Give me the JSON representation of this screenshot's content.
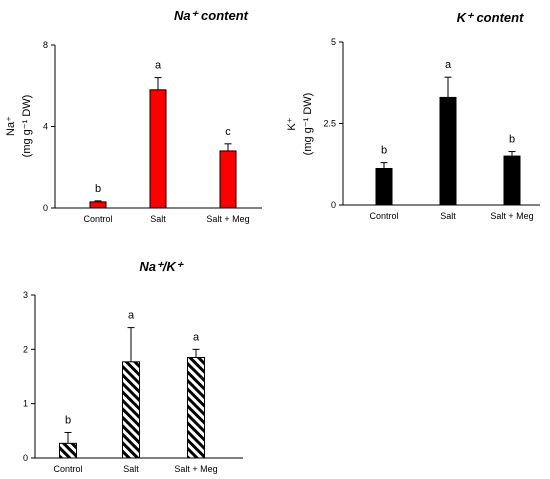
{
  "chart_data": [
    {
      "type": "bar",
      "title": "Na⁺ content",
      "ylabel_line1": "Na⁺",
      "ylabel_line2": "(mg g⁻¹ DW)",
      "categories": [
        "Control",
        "Salt",
        "Salt + Meg"
      ],
      "values": [
        0.3,
        5.8,
        2.8
      ],
      "errors": [
        0.05,
        0.6,
        0.35
      ],
      "significance": [
        "b",
        "a",
        "c"
      ],
      "yticks": [
        "0",
        "4",
        "8"
      ],
      "ylim": [
        0,
        8
      ],
      "bar_color": "#ff0000",
      "pattern": "solid",
      "grid": false
    },
    {
      "type": "bar",
      "title": "K⁺ content",
      "ylabel_line1": "K⁺",
      "ylabel_line2": "(mg g⁻¹ DW)",
      "categories": [
        "Control",
        "Salt",
        "Salt + Meg"
      ],
      "values": [
        1.12,
        3.3,
        1.5
      ],
      "errors": [
        0.18,
        0.62,
        0.14
      ],
      "significance": [
        "b",
        "a",
        "b"
      ],
      "yticks": [
        "0",
        "2.5",
        "5"
      ],
      "ylim": [
        0,
        5
      ],
      "bar_color": "#000000",
      "pattern": "solid",
      "grid": false
    },
    {
      "type": "bar",
      "title": "Na⁺/K⁺",
      "ylabel_line1": "",
      "ylabel_line2": "",
      "categories": [
        "Control",
        "Salt",
        "Salt + Meg"
      ],
      "values": [
        0.27,
        1.77,
        1.85
      ],
      "errors": [
        0.2,
        0.63,
        0.15
      ],
      "significance": [
        "b",
        "a",
        "a"
      ],
      "yticks": [
        "0",
        "1",
        "2",
        "3"
      ],
      "ylim": [
        0,
        3
      ],
      "bar_color": "#000000",
      "pattern": "diagonal-hatch",
      "grid": false
    }
  ]
}
